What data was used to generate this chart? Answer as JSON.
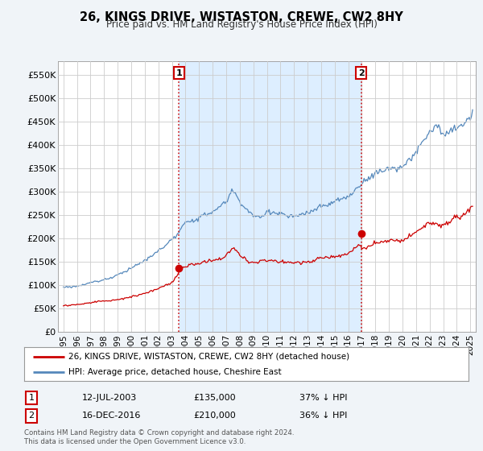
{
  "title": "26, KINGS DRIVE, WISTASTON, CREWE, CW2 8HY",
  "subtitle": "Price paid vs. HM Land Registry's House Price Index (HPI)",
  "ylim": [
    0,
    580000
  ],
  "yticks": [
    0,
    50000,
    100000,
    150000,
    200000,
    250000,
    300000,
    350000,
    400000,
    450000,
    500000,
    550000
  ],
  "ytick_labels": [
    "£0",
    "£50K",
    "£100K",
    "£150K",
    "£200K",
    "£250K",
    "£300K",
    "£350K",
    "£400K",
    "£450K",
    "£500K",
    "£550K"
  ],
  "xlim_start": 1994.6,
  "xlim_end": 2025.4,
  "line1_color": "#cc0000",
  "line2_color": "#5588bb",
  "fill_color": "#ddeeff",
  "marker1_date": 2003.53,
  "marker1_value": 135000,
  "marker2_date": 2016.96,
  "marker2_value": 210000,
  "vline1_x": 2003.53,
  "vline2_x": 2016.96,
  "legend_label1": "26, KINGS DRIVE, WISTASTON, CREWE, CW2 8HY (detached house)",
  "legend_label2": "HPI: Average price, detached house, Cheshire East",
  "table_row1": [
    "1",
    "12-JUL-2003",
    "£135,000",
    "37% ↓ HPI"
  ],
  "table_row2": [
    "2",
    "16-DEC-2016",
    "£210,000",
    "36% ↓ HPI"
  ],
  "footnote": "Contains HM Land Registry data © Crown copyright and database right 2024.\nThis data is licensed under the Open Government Licence v3.0.",
  "bg_color": "#f0f4f8",
  "plot_bg_color": "#ffffff",
  "grid_color": "#cccccc",
  "title_fontsize": 11,
  "subtitle_fontsize": 9
}
